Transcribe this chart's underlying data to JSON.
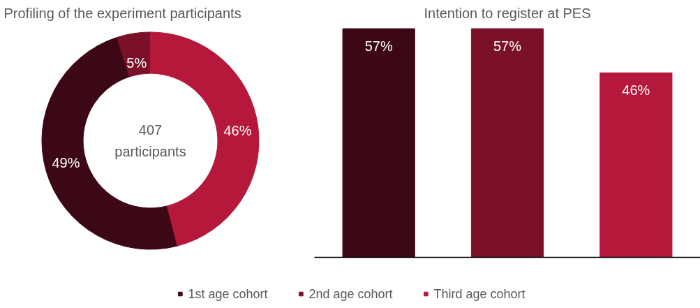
{
  "chart_data": [
    {
      "type": "donut",
      "title": "Profiling of the experiment participants",
      "categories": [
        "1st age cohort",
        "2nd age cohort",
        "Third age cohort"
      ],
      "values": [
        49,
        5,
        46
      ],
      "colors": [
        "#3c0815",
        "#7a1128",
        "#b5183a"
      ],
      "value_labels": [
        "49%",
        "5%",
        "46%"
      ],
      "annotations": [
        "407\nparticipants"
      ],
      "legend": "bottom"
    },
    {
      "type": "bar",
      "title": "Intention to register at PES",
      "categories": [
        null,
        null,
        null
      ],
      "values": [
        57,
        57,
        46
      ],
      "colors": [
        "#3c0815",
        "#7a1128",
        "#b5183a"
      ],
      "value_labels": [
        "57%",
        "57%",
        "46%"
      ]
    }
  ]
}
